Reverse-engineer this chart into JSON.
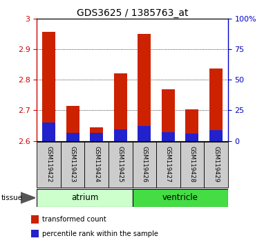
{
  "title": "GDS3625 / 1385763_at",
  "samples": [
    "GSM119422",
    "GSM119423",
    "GSM119424",
    "GSM119425",
    "GSM119426",
    "GSM119427",
    "GSM119428",
    "GSM119429"
  ],
  "red_top": [
    2.955,
    2.715,
    2.645,
    2.82,
    2.95,
    2.768,
    2.703,
    2.837
  ],
  "blue_top": [
    2.66,
    2.625,
    2.626,
    2.637,
    2.648,
    2.628,
    2.623,
    2.636
  ],
  "bar_base": 2.6,
  "ylim_left": [
    2.6,
    3.0
  ],
  "ylim_right": [
    0,
    100
  ],
  "yticks_left": [
    2.6,
    2.7,
    2.8,
    2.9,
    3.0
  ],
  "yticks_right": [
    0,
    25,
    50,
    75,
    100
  ],
  "ytick_left_labels": [
    "2.6",
    "2.7",
    "2.8",
    "2.9",
    "3"
  ],
  "ytick_right_labels": [
    "0",
    "25",
    "50",
    "75",
    "100%"
  ],
  "left_tick_color": "#cc0000",
  "right_tick_color": "#0000cc",
  "red_bar_color": "#cc2200",
  "blue_bar_color": "#2222cc",
  "tissue_groups": [
    {
      "label": "atrium",
      "indices": [
        0,
        1,
        2,
        3
      ],
      "color": "#ccffcc"
    },
    {
      "label": "ventricle",
      "indices": [
        4,
        5,
        6,
        7
      ],
      "color": "#44dd44"
    }
  ],
  "tissue_label": "tissue",
  "legend_items": [
    {
      "color": "#cc2200",
      "label": "transformed count"
    },
    {
      "color": "#2222cc",
      "label": "percentile rank within the sample"
    }
  ],
  "bar_width": 0.55,
  "label_box_color": "#cccccc",
  "grid_color": "black",
  "grid_style": "dotted"
}
